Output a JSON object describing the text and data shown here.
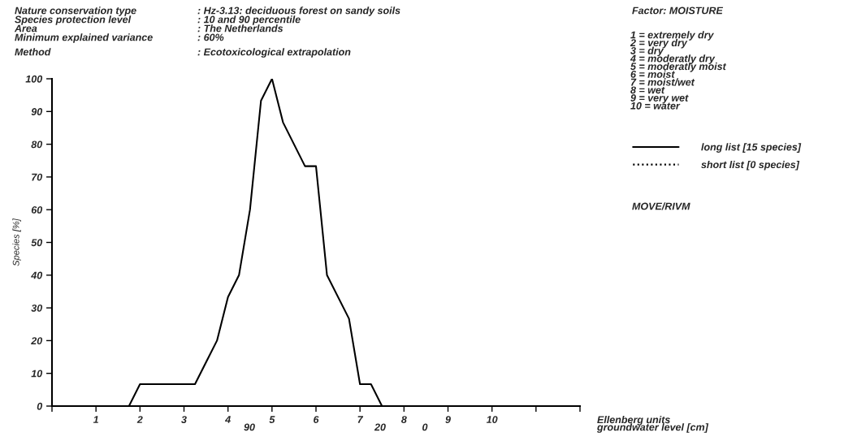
{
  "chart_data": {
    "type": "line",
    "ylabel": "Species [%]",
    "xlabel": "Ellenberg units",
    "xlim": [
      0,
      12
    ],
    "ylim": [
      0,
      100
    ],
    "xticks": [
      {
        "value": 0,
        "label": null
      },
      1,
      2,
      3,
      4,
      5,
      6,
      7,
      8,
      9,
      10,
      {
        "value": 11,
        "label": null
      },
      {
        "value": 12,
        "label": null
      }
    ],
    "yticks": [
      0,
      10,
      20,
      30,
      40,
      50,
      60,
      70,
      80,
      90,
      100
    ],
    "grid": false,
    "legend": "right",
    "series": [
      {
        "name": "long list [15 species]",
        "color": "#000000",
        "line_style": "solid",
        "x": [
          1.75,
          2,
          3.25,
          3.75,
          4,
          4.25,
          4.5,
          4.75,
          5,
          5.25,
          5.75,
          6,
          6.25,
          6.75,
          7,
          7.25,
          7.5
        ],
        "values": [
          0,
          6.7,
          6.7,
          20,
          33.3,
          40,
          60,
          93.3,
          100,
          86.7,
          73.3,
          73.3,
          40,
          26.7,
          6.7,
          6.7,
          0
        ]
      },
      {
        "name": "short list [0 species]",
        "color": "#000000",
        "line_style": "dotted"
      }
    ],
    "annotations": [
      "Nature conservation type",
      ": Hz-3.13: deciduous forest on sandy soils",
      "Species protection level",
      ": 10 and 90 percentile",
      "Area",
      ": The Netherlands",
      "Minimum explained variance",
      ": 60%",
      "Method",
      ": Ecotoxicological extrapolation",
      "Factor: MOISTURE",
      "1 = extremely dry",
      "2 = very dry",
      "3 = dry",
      "4 = moderatly dry",
      "5 = moderatly moist",
      "6 = moist",
      "7 = moist/wet",
      "8 = wet",
      "9 = very wet",
      "10 = water",
      "MOVE/RIVM",
      "90",
      "20",
      "0",
      "groundwater level [cm]"
    ]
  }
}
